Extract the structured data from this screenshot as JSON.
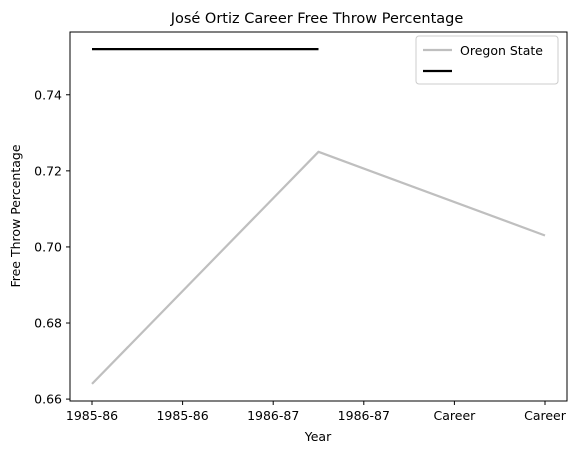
{
  "chart_data": {
    "type": "line",
    "title": "José Ortiz  Career Free Throw Percentage",
    "xlabel": "Year",
    "ylabel": "Free Throw Percentage",
    "x_ticks": [
      "1985-86",
      "1985-86",
      "1986-87",
      "1986-87",
      "Career",
      "Career"
    ],
    "y_ticks": [
      "0.66",
      "0.68",
      "0.70",
      "0.72",
      "0.74"
    ],
    "ylim": [
      0.6595,
      0.7565
    ],
    "grid": false,
    "legend_position": "upper right",
    "series": [
      {
        "name": "Oregon State",
        "color": "#bfbfbf",
        "x": [
          0,
          2.5,
          5
        ],
        "values": [
          0.664,
          0.725,
          0.703
        ]
      },
      {
        "name": "",
        "color": "#000000",
        "x": [
          0,
          2.5
        ],
        "values": [
          0.752,
          0.752
        ]
      }
    ]
  }
}
